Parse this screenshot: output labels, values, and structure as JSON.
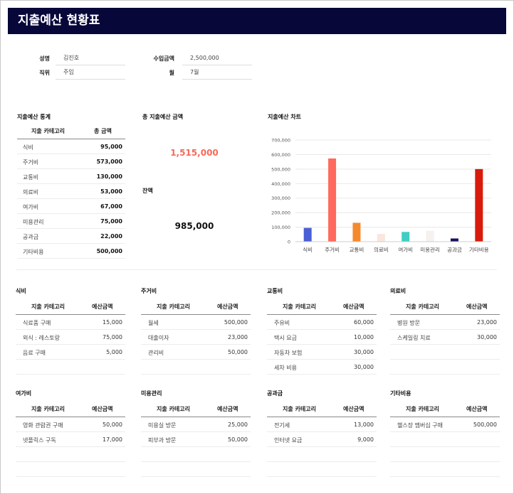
{
  "title": "지출예산 현황표",
  "info": {
    "name_label": "성명",
    "name_value": "김진호",
    "position_label": "직위",
    "position_value": "주임",
    "income_label": "수입금액",
    "income_value": "2,500,000",
    "month_label": "월",
    "month_value": "7월"
  },
  "stats": {
    "title": "지출예산 통계",
    "col_category": "지출 카테고리",
    "col_total": "총 금액",
    "rows": [
      {
        "name": "식비",
        "amount": "95,000"
      },
      {
        "name": "주거비",
        "amount": "573,000"
      },
      {
        "name": "교통비",
        "amount": "130,000"
      },
      {
        "name": "의료비",
        "amount": "53,000"
      },
      {
        "name": "여가비",
        "amount": "67,000"
      },
      {
        "name": "미용관리",
        "amount": "75,000"
      },
      {
        "name": "공과금",
        "amount": "22,000"
      },
      {
        "name": "기타비용",
        "amount": "500,000"
      }
    ]
  },
  "total": {
    "label": "총 지출예산 금액",
    "value": "1,515,000",
    "color": "#f26b5b"
  },
  "balance": {
    "label": "잔액",
    "value": "985,000"
  },
  "chart_title": "지출예산 차트",
  "chart_data": {
    "type": "bar",
    "categories": [
      "식비",
      "주거비",
      "교통비",
      "의료비",
      "여가비",
      "미용관리",
      "공과금",
      "기타비용"
    ],
    "values": [
      95000,
      573000,
      130000,
      53000,
      67000,
      75000,
      22000,
      500000
    ],
    "colors": [
      "#4a5fd4",
      "#ff6a5c",
      "#f58a2c",
      "#fbe5dd",
      "#3fcdc4",
      "#f6f0ee",
      "#17115e",
      "#d81b0b"
    ],
    "ylim": [
      0,
      700000
    ],
    "yticks": [
      "0",
      "100,000",
      "200,000",
      "300,000",
      "400,000",
      "500,000",
      "600,000",
      "700,000"
    ],
    "grid": true
  },
  "details": {
    "col_category": "지출 카테고리",
    "col_amount": "예산금액",
    "sections": [
      {
        "title": "식비",
        "rows": [
          {
            "name": "식료품 구매",
            "amount": "15,000"
          },
          {
            "name": "외식 : 레스토랑",
            "amount": "75,000"
          },
          {
            "name": "음료 구매",
            "amount": "5,000"
          }
        ]
      },
      {
        "title": "주거비",
        "rows": [
          {
            "name": "월세",
            "amount": "500,000"
          },
          {
            "name": "대출이자",
            "amount": "23,000"
          },
          {
            "name": "관리비",
            "amount": "50,000"
          }
        ]
      },
      {
        "title": "교통비",
        "rows": [
          {
            "name": "주유비",
            "amount": "60,000"
          },
          {
            "name": "택시 요금",
            "amount": "10,000"
          },
          {
            "name": "자동차 보험",
            "amount": "30,000"
          },
          {
            "name": "세차 비용",
            "amount": "30,000"
          }
        ]
      },
      {
        "title": "의료비",
        "rows": [
          {
            "name": "병원 방문",
            "amount": "23,000"
          },
          {
            "name": "스케일링 치료",
            "amount": "30,000"
          }
        ]
      },
      {
        "title": "여가비",
        "rows": [
          {
            "name": "영화 관람권 구매",
            "amount": "50,000"
          },
          {
            "name": "넷플릭스 구독",
            "amount": "17,000"
          }
        ]
      },
      {
        "title": "미용관리",
        "rows": [
          {
            "name": "미용실 방문",
            "amount": "25,000"
          },
          {
            "name": "피부과 방문",
            "amount": "50,000"
          }
        ]
      },
      {
        "title": "공과금",
        "rows": [
          {
            "name": "전기세",
            "amount": "13,000"
          },
          {
            "name": "인터넷 요금",
            "amount": "9,000"
          }
        ]
      },
      {
        "title": "기타비용",
        "rows": [
          {
            "name": "헬스장 멤버십 구매",
            "amount": "500,000"
          }
        ]
      }
    ]
  }
}
